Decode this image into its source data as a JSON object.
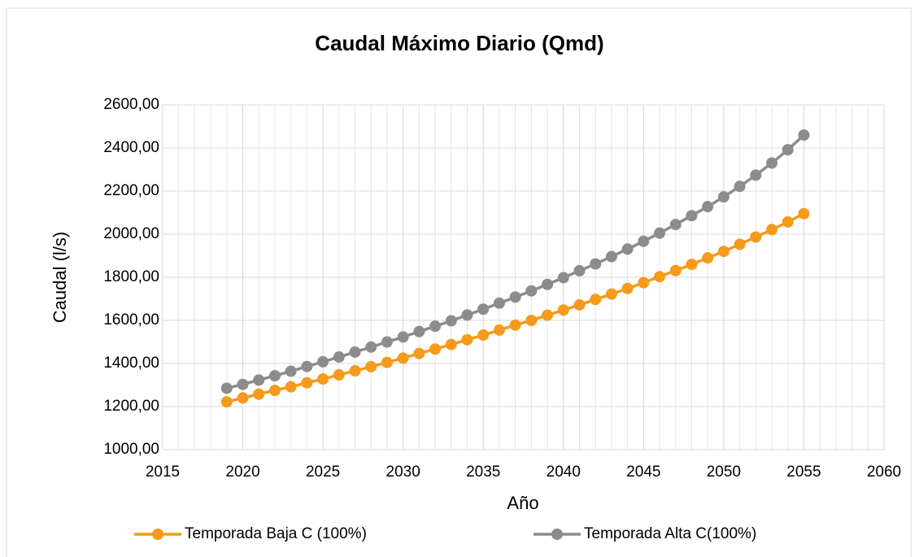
{
  "chart_data": {
    "type": "line",
    "title": "Caudal Máximo Diario (Qmd)",
    "x_label": "Año",
    "y_label": "Caudal (l/s)",
    "x": [
      2019,
      2020,
      2021,
      2022,
      2023,
      2024,
      2025,
      2026,
      2027,
      2028,
      2029,
      2030,
      2031,
      2032,
      2033,
      2034,
      2035,
      2036,
      2037,
      2038,
      2039,
      2040,
      2041,
      2042,
      2043,
      2044,
      2045,
      2046,
      2047,
      2048,
      2049,
      2050,
      2051,
      2052,
      2053,
      2054,
      2055
    ],
    "series": [
      {
        "name": "Temporada Baja C (100%)",
        "color": "#f59a1b",
        "values": [
          1222,
          1240,
          1258,
          1275,
          1292,
          1310,
          1328,
          1347,
          1366,
          1385,
          1405,
          1425,
          1446,
          1467,
          1488,
          1510,
          1532,
          1555,
          1578,
          1600,
          1624,
          1648,
          1672,
          1697,
          1722,
          1748,
          1775,
          1803,
          1831,
          1860,
          1890,
          1920,
          1953,
          1987,
          2021,
          2057,
          2095
        ]
      },
      {
        "name": "Temporada Alta C(100%)",
        "color": "#8c8c8c",
        "values": [
          1285,
          1303,
          1323,
          1343,
          1364,
          1386,
          1408,
          1430,
          1453,
          1476,
          1500,
          1523,
          1548,
          1573,
          1598,
          1625,
          1652,
          1680,
          1708,
          1737,
          1767,
          1798,
          1830,
          1862,
          1896,
          1931,
          1967,
          2005,
          2045,
          2086,
          2128,
          2173,
          2222,
          2274,
          2330,
          2392,
          2460
        ]
      }
    ],
    "xlim": [
      2015,
      2060
    ],
    "xticks": [
      2015,
      2020,
      2025,
      2030,
      2035,
      2040,
      2045,
      2050,
      2055,
      2060
    ],
    "xgrid_step": 1,
    "ylim": [
      1000,
      2600
    ],
    "yticks": [
      {
        "value": 1000,
        "label": "1000,00"
      },
      {
        "value": 1200,
        "label": "1200,00"
      },
      {
        "value": 1400,
        "label": "1400,00"
      },
      {
        "value": 1600,
        "label": "1600,00"
      },
      {
        "value": 1800,
        "label": "1800,00"
      },
      {
        "value": 2000,
        "label": "2000,00"
      },
      {
        "value": 2200,
        "label": "2200,00"
      },
      {
        "value": 2400,
        "label": "2400,00"
      },
      {
        "value": 2600,
        "label": "2600,00"
      }
    ],
    "grid": true,
    "legend": "bottom"
  }
}
